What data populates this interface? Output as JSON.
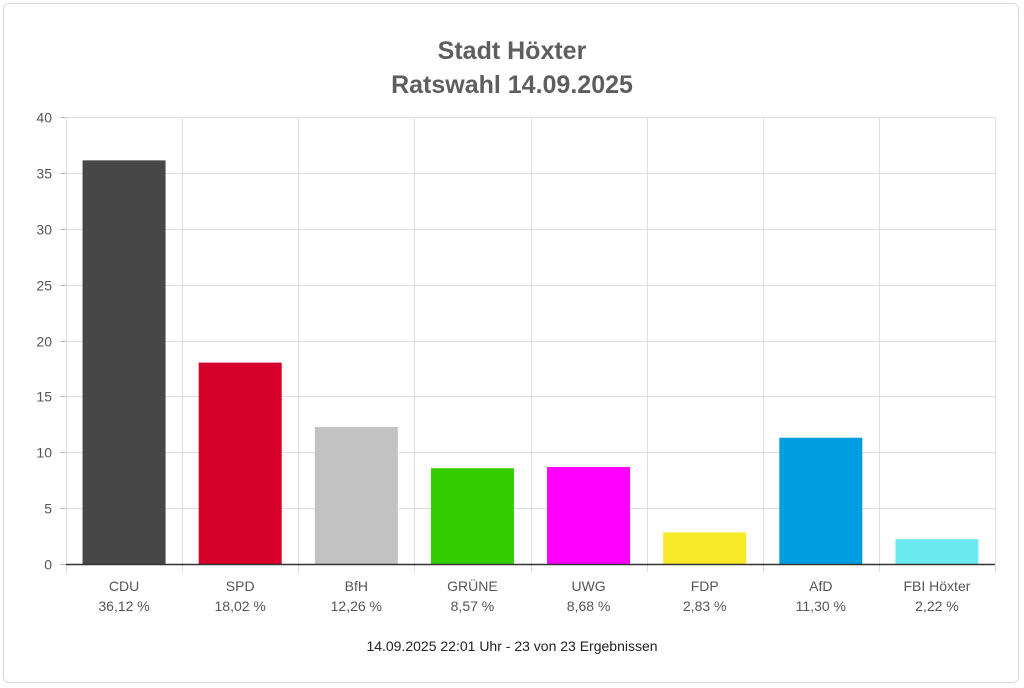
{
  "chart_data": {
    "type": "bar",
    "title": "Stadt Höxter",
    "subtitle": "Ratswahl 14.09.2025",
    "categories": [
      "CDU",
      "SPD",
      "BfH",
      "GRÜNE",
      "UWG",
      "FDP",
      "AfD",
      "FBI Höxter"
    ],
    "values": [
      36.12,
      18.02,
      12.26,
      8.57,
      8.68,
      2.83,
      11.3,
      2.22
    ],
    "value_labels": [
      "36,12 %",
      "18,02 %",
      "12,26 %",
      "8,57 %",
      "8,68 %",
      "2,83 %",
      "11,30 %",
      "2,22 %"
    ],
    "colors": [
      "#474747",
      "#d7002a",
      "#c2c2c2",
      "#33cc00",
      "#ff00ff",
      "#f7e928",
      "#009ee0",
      "#6ceaf2"
    ],
    "yticks": [
      0,
      5,
      10,
      15,
      20,
      25,
      30,
      35,
      40
    ],
    "ylim": [
      0,
      40
    ],
    "xlabel": "",
    "ylabel": "",
    "grid": true
  },
  "footer": "14.09.2025 22:01 Uhr - 23 von 23 Ergebnissen"
}
